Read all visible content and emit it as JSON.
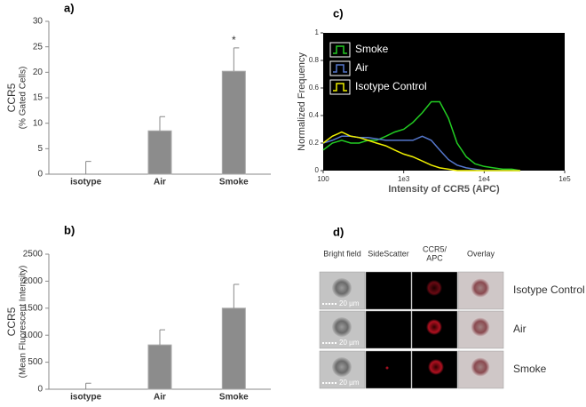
{
  "chart_data": [
    {
      "type": "bar",
      "panel": "a)",
      "ylabel": [
        "CCR5",
        "(% Gated Cells)"
      ],
      "categories": [
        "isotype",
        "Air",
        "Smoke"
      ],
      "values": [
        0,
        8.5,
        20.2
      ],
      "errors": [
        2.5,
        2.8,
        4.6
      ],
      "color": "#8c8c8c",
      "ylim": [
        0,
        30
      ],
      "yticks": [
        0,
        5,
        10,
        15,
        20,
        25,
        30
      ],
      "annotations": [
        {
          "text": "*",
          "category": 2
        }
      ]
    },
    {
      "type": "bar",
      "panel": "b)",
      "ylabel": [
        "CCR5",
        "(Mean Fluorescent Intensity)"
      ],
      "categories": [
        "isotype",
        "Air",
        "Smoke"
      ],
      "values": [
        0,
        820,
        1500
      ],
      "errors": [
        110,
        280,
        440
      ],
      "color": "#8c8c8c",
      "ylim": [
        0,
        2500
      ],
      "yticks": [
        0,
        500,
        1000,
        1500,
        2000,
        2500
      ]
    },
    {
      "type": "line",
      "panel": "c)",
      "xlabel": "Intensity of CCR5 (APC)",
      "ylabel": "Normalized Frequency",
      "log_x": true,
      "background": "#000000",
      "legend": "upper left",
      "x": [
        100,
        130,
        170,
        220,
        280,
        360,
        460,
        600,
        770,
        1000,
        1300,
        1700,
        2200,
        2800,
        3600,
        4600,
        6000,
        7700,
        10000,
        13000,
        17000,
        22000,
        28000
      ],
      "xlim": [
        100,
        100000
      ],
      "xticks": [
        100,
        {
          "value": 1000,
          "label": "1e3"
        },
        {
          "value": 10000,
          "label": "1e4"
        },
        {
          "value": 100000,
          "label": "1e5"
        }
      ],
      "ylim": [
        0,
        1
      ],
      "yticks": [
        0,
        0.2,
        0.4,
        0.6,
        0.8,
        1
      ],
      "series": [
        {
          "name": "Smoke",
          "color": "#22cc22",
          "values": [
            0.15,
            0.2,
            0.22,
            0.2,
            0.2,
            0.22,
            0.22,
            0.25,
            0.28,
            0.3,
            0.35,
            0.42,
            0.5,
            0.5,
            0.38,
            0.2,
            0.1,
            0.05,
            0.03,
            0.02,
            0.01,
            0.01,
            0
          ]
        },
        {
          "name": "Air",
          "color": "#5577cc",
          "values": [
            0.2,
            0.22,
            0.25,
            0.25,
            0.24,
            0.24,
            0.23,
            0.22,
            0.22,
            0.22,
            0.22,
            0.25,
            0.22,
            0.15,
            0.08,
            0.04,
            0.02,
            0.01,
            0,
            0,
            0,
            0,
            0
          ]
        },
        {
          "name": "Isotype Control",
          "color": "#eeee00",
          "values": [
            0.2,
            0.25,
            0.28,
            0.25,
            0.24,
            0.22,
            0.2,
            0.18,
            0.15,
            0.12,
            0.1,
            0.07,
            0.04,
            0.02,
            0.01,
            0,
            0,
            0,
            0,
            0,
            0,
            0,
            0
          ]
        }
      ]
    }
  ],
  "image_panel": {
    "panel": "d)",
    "columns": [
      [
        "Bright field"
      ],
      [
        "SideScatter"
      ],
      [
        "CCR5/",
        "APC"
      ],
      [
        "Overlay"
      ]
    ],
    "rows": [
      "Isotype Control",
      "Air",
      "Smoke"
    ],
    "scale_bar": "20 µm"
  }
}
